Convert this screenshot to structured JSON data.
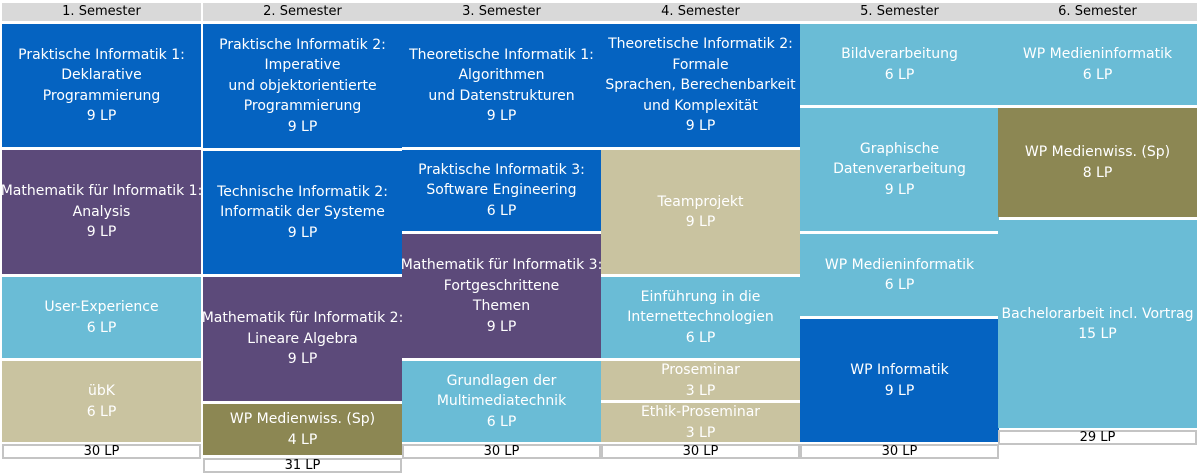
{
  "semesters": [
    {
      "title": "1. Semester",
      "total": "30 LP",
      "modules": [
        {
          "lines": [
            "Praktische Informatik 1:",
            "Deklarative",
            "Programmierung"
          ],
          "lp": "9 LP",
          "color": "#0563c1"
        },
        {
          "lines": [
            "Mathematik für Informatik 1:",
            "Analysis"
          ],
          "lp": "9 LP",
          "color": "#5c4a7a"
        },
        {
          "lines": [
            "User-Experience"
          ],
          "lp": "6 LP",
          "color": "#6abcd6"
        },
        {
          "lines": [
            "übK"
          ],
          "lp": "6 LP",
          "color": "#c9c3a0"
        }
      ]
    },
    {
      "title": "2. Semester",
      "total": "31 LP",
      "modules": [
        {
          "lines": [
            "Praktische Informatik 2:",
            "Imperative",
            "und objektorientierte",
            "Programmierung"
          ],
          "lp": "9 LP",
          "color": "#0563c1"
        },
        {
          "lines": [
            "Technische Informatik 2:",
            "Informatik der Systeme"
          ],
          "lp": "9 LP",
          "color": "#0563c1"
        },
        {
          "lines": [
            "Mathematik für Informatik 2:",
            "Lineare Algebra"
          ],
          "lp": "9 LP",
          "color": "#5c4a7a"
        },
        {
          "lines": [
            "WP Medienwiss. (Sp)"
          ],
          "lp": "4 LP",
          "color": "#8c8753"
        }
      ]
    },
    {
      "title": "3. Semester",
      "total": "30 LP",
      "modules": [
        {
          "lines": [
            "Theoretische Informatik 1:",
            "Algorithmen",
            "und Datenstrukturen"
          ],
          "lp": "9 LP",
          "color": "#0563c1"
        },
        {
          "lines": [
            "Praktische Informatik 3:",
            "Software Engineering"
          ],
          "lp": "6 LP",
          "color": "#0563c1"
        },
        {
          "lines": [
            "Mathematik für Informatik 3:",
            "Fortgeschrittene",
            "Themen"
          ],
          "lp": "9 LP",
          "color": "#5c4a7a"
        },
        {
          "lines": [
            "Grundlagen der",
            "Multimediatechnik"
          ],
          "lp": "6 LP",
          "color": "#6abcd6"
        }
      ]
    },
    {
      "title": "4. Semester",
      "total": "30 LP",
      "modules": [
        {
          "lines": [
            "Theoretische Informatik 2:",
            "Formale",
            "Sprachen, Berechenbarkeit",
            "und Komplexität"
          ],
          "lp": "9 LP",
          "color": "#0563c1"
        },
        {
          "lines": [
            "Teamprojekt"
          ],
          "lp": "9 LP",
          "color": "#c9c3a0"
        },
        {
          "lines": [
            "Einführung in die",
            "Internettechnologien"
          ],
          "lp": "6 LP",
          "color": "#6abcd6"
        },
        {
          "lines": [
            "Proseminar"
          ],
          "lp": "3 LP",
          "color": "#c9c3a0"
        },
        {
          "lines": [
            "Ethik-Proseminar"
          ],
          "lp": "3 LP",
          "color": "#c9c3a0"
        }
      ]
    },
    {
      "title": "5. Semester",
      "total": "30 LP",
      "modules": [
        {
          "lines": [
            "Bildverarbeitung"
          ],
          "lp": "6 LP",
          "color": "#6abcd6"
        },
        {
          "lines": [
            "Graphische",
            "Datenverarbeitung"
          ],
          "lp": "9 LP",
          "color": "#6abcd6"
        },
        {
          "lines": [
            "WP Medieninformatik"
          ],
          "lp": "6 LP",
          "color": "#6abcd6"
        },
        {
          "lines": [
            "WP Informatik"
          ],
          "lp": "9 LP",
          "color": "#0563c1"
        }
      ]
    },
    {
      "title": "6. Semester",
      "total": "29 LP",
      "modules": [
        {
          "lines": [
            "WP Medieninformatik"
          ],
          "lp": "6 LP",
          "color": "#6abcd6"
        },
        {
          "lines": [
            "WP Medienwiss. (Sp)"
          ],
          "lp": "8 LP",
          "color": "#8c8753"
        },
        {
          "lines": [
            "Bachelorarbeit incl. Vortrag"
          ],
          "lp": "15 LP",
          "color": "#6abcd6"
        }
      ]
    }
  ]
}
